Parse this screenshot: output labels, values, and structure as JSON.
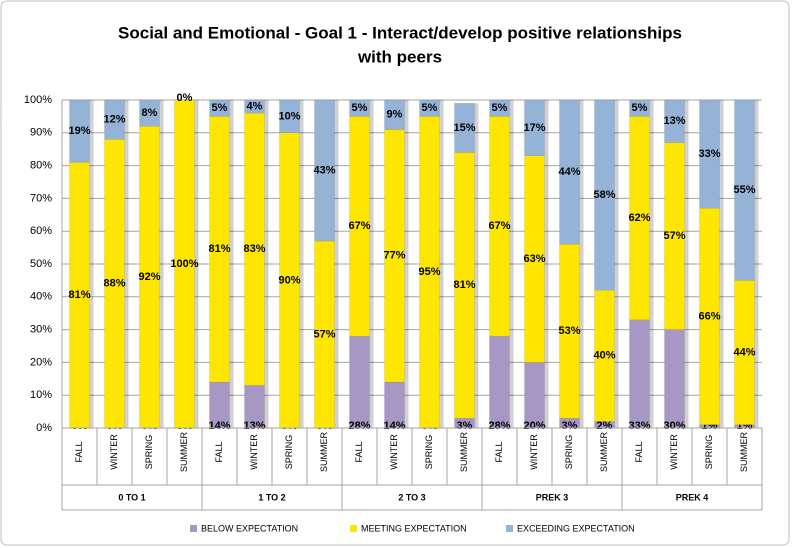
{
  "chart_data": {
    "type": "stacked_bar",
    "title": [
      "Social and Emotional - Goal 1 - Interact/develop positive relationships",
      "with peers"
    ],
    "categories": [
      "FALL",
      "WINTER",
      "SPRING",
      "SUMMER",
      "FALL",
      "WINTER",
      "SPRING",
      "SUMMER",
      "FALL",
      "WINTER",
      "SPRING",
      "SUMMER",
      "FALL",
      "WINTER",
      "SPRING",
      "SUMMER",
      "FALL",
      "WINTER",
      "SPRING",
      "SUMMER"
    ],
    "groups": [
      "0 TO 1",
      "1 TO 2",
      "2 TO 3",
      "PREK 3",
      "PREK 4"
    ],
    "series": [
      {
        "name": "BELOW EXPECTATION",
        "color": "#a797c5",
        "values": [
          0,
          0,
          0,
          0,
          14,
          13,
          0,
          0,
          28,
          14,
          0,
          3,
          28,
          20,
          3,
          2,
          33,
          30,
          1,
          1
        ],
        "value_labels": [
          "0%",
          "0%",
          "0%",
          "0%",
          "14%",
          "13%",
          "0%",
          "0%",
          "28%",
          "14%",
          "0%",
          "3%",
          "28%",
          "20%",
          "3%",
          "2%",
          "33%",
          "30%",
          "1%",
          "1%"
        ]
      },
      {
        "name": "MEETING EXPECTATION",
        "color": "#ffe600",
        "values": [
          81,
          88,
          92,
          100,
          81,
          83,
          90,
          57,
          67,
          77,
          95,
          81,
          67,
          63,
          53,
          40,
          62,
          57,
          66,
          44
        ],
        "value_labels": [
          "81%",
          "88%",
          "92%",
          "100%",
          "81%",
          "83%",
          "90%",
          "57%",
          "67%",
          "77%",
          "95%",
          "81%",
          "67%",
          "63%",
          "53%",
          "40%",
          "62%",
          "57%",
          "66%",
          "44%"
        ]
      },
      {
        "name": "EXCEEDING EXPECTATION",
        "color": "#95b3d7",
        "values": [
          19,
          12,
          8,
          0,
          5,
          4,
          10,
          43,
          5,
          9,
          5,
          15,
          5,
          17,
          44,
          58,
          5,
          13,
          33,
          55
        ],
        "value_labels": [
          "19%",
          "12%",
          "8%",
          "0%",
          "5%",
          "4%",
          "10%",
          "43%",
          "5%",
          "9%",
          "5%",
          "15%",
          "5%",
          "17%",
          "44%",
          "58%",
          "5%",
          "13%",
          "33%",
          "55%"
        ]
      }
    ],
    "ylim": [
      0,
      100
    ],
    "yticks": [
      {
        "value": 0,
        "label": "0%"
      },
      {
        "value": 10,
        "label": "10%"
      },
      {
        "value": 20,
        "label": "20%"
      },
      {
        "value": 30,
        "label": "30%"
      },
      {
        "value": 40,
        "label": "40%"
      },
      {
        "value": 50,
        "label": "50%"
      },
      {
        "value": 60,
        "label": "60%"
      },
      {
        "value": 70,
        "label": "70%"
      },
      {
        "value": 80,
        "label": "80%"
      },
      {
        "value": 90,
        "label": "90%"
      },
      {
        "value": 100,
        "label": "100%"
      }
    ],
    "grid": true
  }
}
